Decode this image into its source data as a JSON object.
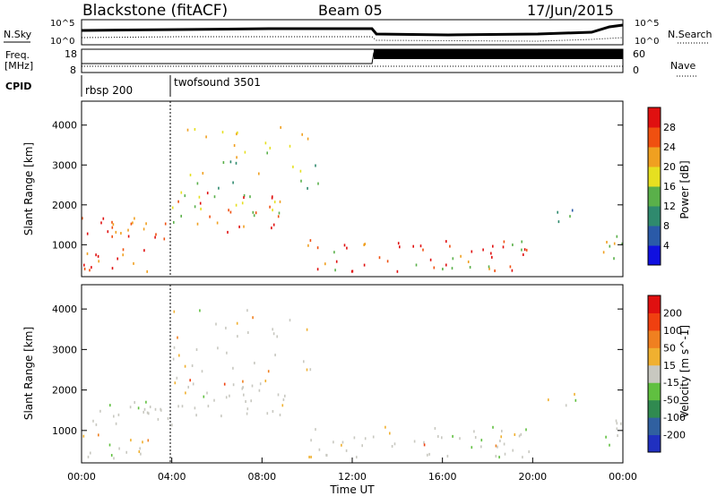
{
  "header": {
    "station": "Blackstone (fitACF)",
    "beam": "Beam 05",
    "date": "17/Jun/2015"
  },
  "left_labels": {
    "nsky": "N.Sky",
    "freq_line1": "Freq.",
    "freq_line2": "[MHz]",
    "cpid": "CPID"
  },
  "right_labels": {
    "nsearch": "N.Search",
    "nave": "Nave"
  },
  "nsky_ticks": [
    "10^5",
    "10^0"
  ],
  "nsearch_ticks": [
    "10^5",
    "10^0"
  ],
  "freq_ticks": [
    "18",
    "8"
  ],
  "nave_ticks": [
    "60",
    "0"
  ],
  "cpid_entries": [
    {
      "label": "rbsp 200",
      "start_hour": 0
    },
    {
      "label": "twofsound 3501",
      "start_hour": 3.9
    }
  ],
  "chart_data": [
    {
      "type": "heatmap",
      "name": "power",
      "ylabel": "Slant Range [km]",
      "yticks": [
        1000,
        2000,
        3000,
        4000
      ],
      "ylim": [
        200,
        4600
      ],
      "xlim": [
        0,
        24
      ],
      "colorbar_label": "Power [dB]",
      "colorbar_ticks": [
        "4",
        "8",
        "12",
        "16",
        "20",
        "24",
        "28"
      ],
      "colorbar_colors": [
        "#1010e0",
        "#2a5aa8",
        "#2f8a6e",
        "#5ab04a",
        "#e6e020",
        "#f0a020",
        "#f05010",
        "#e01010"
      ]
    },
    {
      "type": "heatmap",
      "name": "velocity",
      "ylabel": "Slant Range [km]",
      "yticks": [
        1000,
        2000,
        3000,
        4000
      ],
      "ylim": [
        200,
        4600
      ],
      "xlim": [
        0,
        24
      ],
      "xlabel": "Time UT",
      "xticks": [
        "00:00",
        "04:00",
        "08:00",
        "12:00",
        "16:00",
        "20:00",
        "00:00"
      ],
      "colorbar_label": "Velocity [m s^-1]",
      "colorbar_ticks": [
        "200",
        "100",
        "50",
        "15",
        "-15",
        "-50",
        "-100",
        "-200"
      ],
      "colorbar_colors": [
        "#2030c0",
        "#3060a0",
        "#308a50",
        "#60c040",
        "#c8c8c0",
        "#f0b030",
        "#f08020",
        "#f04010",
        "#e01010"
      ]
    }
  ]
}
